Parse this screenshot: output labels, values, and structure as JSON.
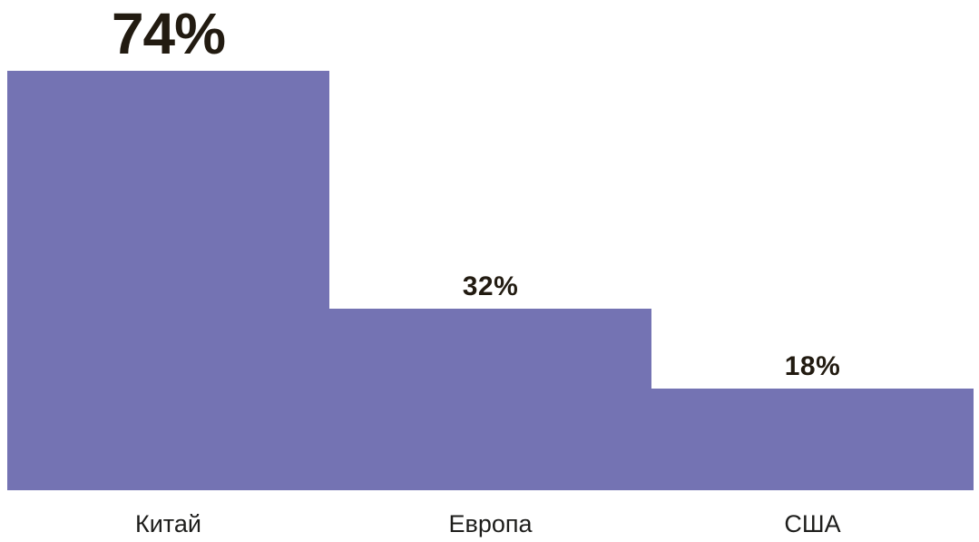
{
  "chart_data": {
    "type": "bar",
    "categories": [
      "Китай",
      "Европа",
      "США"
    ],
    "values": [
      74,
      32,
      18
    ],
    "value_labels": [
      "74%",
      "32%",
      "18%"
    ],
    "title": "",
    "xlabel": "",
    "ylabel": "",
    "ylim": [
      0,
      74
    ],
    "grid": false,
    "legend_position": "none",
    "bar_color": "#7473B3",
    "value_label_color": "#221B11",
    "category_label_color": "#1D1D1B",
    "background_color": "#FFFFFF",
    "highlighted_bar_index": 0
  }
}
